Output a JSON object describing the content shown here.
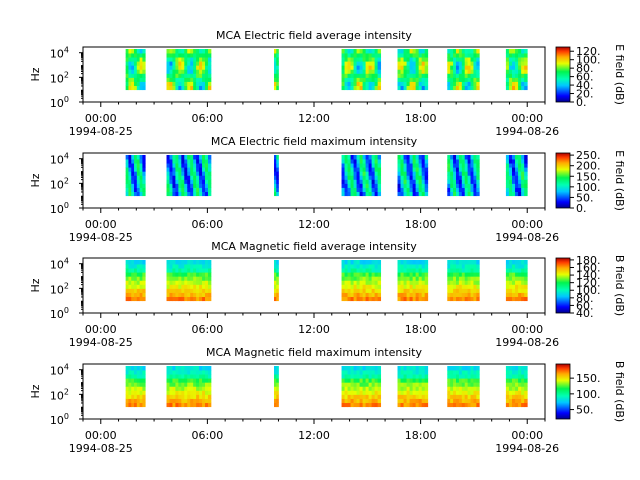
{
  "chart_data": [
    {
      "type": "heatmap",
      "title": "MCA  Electric field average intensity",
      "ylabel": "Hz",
      "yscale": "log",
      "y_ticks": [
        {
          "exp": "0"
        },
        {
          "exp": "2"
        },
        {
          "exp": "4"
        }
      ],
      "x_ticks": [
        "00:00",
        "06:00",
        "12:00",
        "18:00",
        "00:00"
      ],
      "x_dates": [
        "1994-08-25",
        "1994-08-26"
      ],
      "xlim_hours": [
        -1,
        25
      ],
      "colorbar": {
        "label": "E field (dB)",
        "ticks": [
          "0.",
          "20.",
          "40.",
          "60.",
          "80.",
          "100.",
          "120."
        ],
        "vmin": 0,
        "vmax": 130
      },
      "data_intervals_hours": [
        [
          1.4,
          2.5
        ],
        [
          3.7,
          6.2
        ],
        [
          9.75,
          10.0
        ],
        [
          13.55,
          15.75
        ],
        [
          16.7,
          18.4
        ],
        [
          19.5,
          21.3
        ],
        [
          22.8,
          24.0
        ]
      ],
      "freq_range_exp": [
        1,
        4.3
      ]
    },
    {
      "type": "heatmap",
      "title": "MCA  Electric field maximum intensity",
      "ylabel": "Hz",
      "yscale": "log",
      "y_ticks": [
        {
          "exp": "0"
        },
        {
          "exp": "2"
        },
        {
          "exp": "4"
        }
      ],
      "x_ticks": [
        "00:00",
        "06:00",
        "12:00",
        "18:00",
        "00:00"
      ],
      "x_dates": [
        "1994-08-25",
        "1994-08-26"
      ],
      "xlim_hours": [
        -1,
        25
      ],
      "colorbar": {
        "label": "E field (dB)",
        "ticks": [
          "0.",
          "50.",
          "100.",
          "150.",
          "200.",
          "250."
        ],
        "vmin": 0,
        "vmax": 260
      },
      "data_intervals_hours": [
        [
          1.4,
          2.5
        ],
        [
          3.7,
          6.2
        ],
        [
          9.75,
          10.0
        ],
        [
          13.55,
          15.75
        ],
        [
          16.7,
          18.4
        ],
        [
          19.5,
          21.3
        ],
        [
          22.8,
          24.0
        ]
      ],
      "freq_range_exp": [
        1,
        4.3
      ]
    },
    {
      "type": "heatmap",
      "title": "MCA  Magnetic field average intensity",
      "ylabel": "Hz",
      "yscale": "log",
      "y_ticks": [
        {
          "exp": "0"
        },
        {
          "exp": "2"
        },
        {
          "exp": "4"
        }
      ],
      "x_ticks": [
        "00:00",
        "06:00",
        "12:00",
        "18:00",
        "00:00"
      ],
      "x_dates": [
        "1994-08-25",
        "1994-08-26"
      ],
      "xlim_hours": [
        -1,
        25
      ],
      "colorbar": {
        "label": "B field (dB)",
        "ticks": [
          "40.",
          "60.",
          "80.",
          "100.",
          "120.",
          "140.",
          "160.",
          "180."
        ],
        "vmin": 40,
        "vmax": 185
      },
      "data_intervals_hours": [
        [
          1.4,
          2.5
        ],
        [
          3.7,
          6.2
        ],
        [
          9.75,
          10.0
        ],
        [
          13.55,
          15.75
        ],
        [
          16.7,
          18.4
        ],
        [
          19.5,
          21.3
        ],
        [
          22.8,
          24.0
        ]
      ],
      "freq_range_exp": [
        1,
        4.3
      ]
    },
    {
      "type": "heatmap",
      "title": "MCA  Magnetic field maximum intensity",
      "ylabel": "Hz",
      "yscale": "log",
      "y_ticks": [
        {
          "exp": "0"
        },
        {
          "exp": "2"
        },
        {
          "exp": "4"
        }
      ],
      "x_ticks": [
        "00:00",
        "06:00",
        "12:00",
        "18:00",
        "00:00"
      ],
      "x_dates": [
        "1994-08-25",
        "1994-08-26"
      ],
      "xlim_hours": [
        -1,
        25
      ],
      "colorbar": {
        "label": "B field (dB)",
        "ticks": [
          "50.",
          "100.",
          "150."
        ],
        "vmin": 20,
        "vmax": 195
      },
      "data_intervals_hours": [
        [
          1.4,
          2.5
        ],
        [
          3.7,
          6.2
        ],
        [
          9.75,
          10.0
        ],
        [
          13.55,
          15.75
        ],
        [
          16.7,
          18.4
        ],
        [
          19.5,
          21.3
        ],
        [
          22.8,
          24.0
        ]
      ],
      "freq_range_exp": [
        1,
        4.3
      ]
    }
  ]
}
